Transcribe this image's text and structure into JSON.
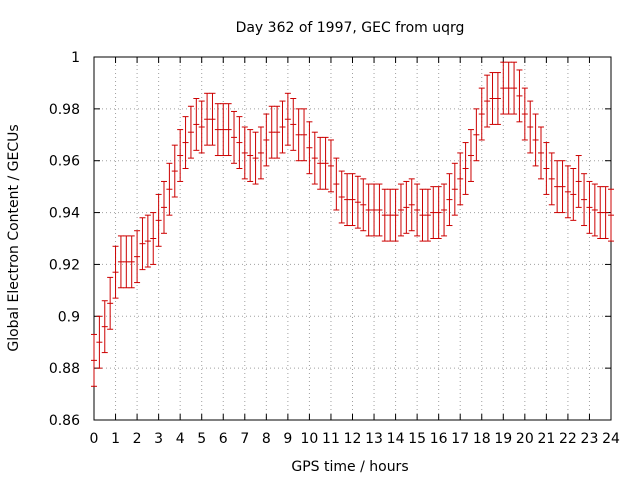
{
  "chart_data": {
    "type": "line",
    "title": "Day 362 of 1997, GEC from uqrg",
    "xlabel": "GPS time / hours",
    "ylabel": "Global Electron Content / GECUs",
    "xlim": [
      0,
      24
    ],
    "ylim": [
      0.86,
      1.0
    ],
    "x_ticks": [
      "0",
      "1",
      "2",
      "3",
      "4",
      "5",
      "6",
      "7",
      "8",
      "9",
      "10",
      "11",
      "12",
      "13",
      "14",
      "15",
      "16",
      "17",
      "18",
      "19",
      "20",
      "21",
      "22",
      "23",
      "24"
    ],
    "y_ticks": [
      "0.86",
      "0.88",
      "0.9",
      "0.92",
      "0.94",
      "0.96",
      "0.98",
      "1"
    ],
    "grid": true,
    "series_color": "#cc0000",
    "series": [
      {
        "error_bar": 0.01,
        "points": [
          [
            0.0,
            0.883
          ],
          [
            0.25,
            0.89
          ],
          [
            0.5,
            0.896
          ],
          [
            0.75,
            0.905
          ],
          [
            1.0,
            0.917
          ],
          [
            1.25,
            0.921
          ],
          [
            1.5,
            0.921
          ],
          [
            1.75,
            0.921
          ],
          [
            2.0,
            0.923
          ],
          [
            2.25,
            0.928
          ],
          [
            2.5,
            0.929
          ],
          [
            2.75,
            0.93
          ],
          [
            3.0,
            0.937
          ],
          [
            3.25,
            0.942
          ],
          [
            3.5,
            0.949
          ],
          [
            3.75,
            0.956
          ],
          [
            4.0,
            0.962
          ],
          [
            4.25,
            0.967
          ],
          [
            4.5,
            0.971
          ],
          [
            4.75,
            0.974
          ],
          [
            5.0,
            0.973
          ],
          [
            5.25,
            0.976
          ],
          [
            5.5,
            0.976
          ],
          [
            5.75,
            0.972
          ],
          [
            6.0,
            0.972
          ],
          [
            6.25,
            0.972
          ],
          [
            6.5,
            0.969
          ],
          [
            6.75,
            0.967
          ],
          [
            7.0,
            0.963
          ],
          [
            7.25,
            0.962
          ],
          [
            7.5,
            0.961
          ],
          [
            7.75,
            0.963
          ],
          [
            8.0,
            0.968
          ],
          [
            8.25,
            0.971
          ],
          [
            8.5,
            0.971
          ],
          [
            8.75,
            0.973
          ],
          [
            9.0,
            0.976
          ],
          [
            9.25,
            0.974
          ],
          [
            9.5,
            0.97
          ],
          [
            9.75,
            0.97
          ],
          [
            10.0,
            0.965
          ],
          [
            10.25,
            0.961
          ],
          [
            10.5,
            0.959
          ],
          [
            10.75,
            0.959
          ],
          [
            11.0,
            0.958
          ],
          [
            11.25,
            0.951
          ],
          [
            11.5,
            0.946
          ],
          [
            11.75,
            0.945
          ],
          [
            12.0,
            0.945
          ],
          [
            12.25,
            0.944
          ],
          [
            12.5,
            0.943
          ],
          [
            12.75,
            0.941
          ],
          [
            13.0,
            0.941
          ],
          [
            13.25,
            0.941
          ],
          [
            13.5,
            0.939
          ],
          [
            13.75,
            0.939
          ],
          [
            14.0,
            0.939
          ],
          [
            14.25,
            0.941
          ],
          [
            14.5,
            0.942
          ],
          [
            14.75,
            0.943
          ],
          [
            15.0,
            0.941
          ],
          [
            15.25,
            0.939
          ],
          [
            15.5,
            0.939
          ],
          [
            15.75,
            0.94
          ],
          [
            16.0,
            0.94
          ],
          [
            16.25,
            0.941
          ],
          [
            16.5,
            0.945
          ],
          [
            16.75,
            0.949
          ],
          [
            17.0,
            0.953
          ],
          [
            17.25,
            0.957
          ],
          [
            17.5,
            0.962
          ],
          [
            17.75,
            0.97
          ],
          [
            18.0,
            0.978
          ],
          [
            18.25,
            0.983
          ],
          [
            18.5,
            0.984
          ],
          [
            18.75,
            0.984
          ],
          [
            19.0,
            0.988
          ],
          [
            19.25,
            0.988
          ],
          [
            19.5,
            0.988
          ],
          [
            19.75,
            0.985
          ],
          [
            20.0,
            0.978
          ],
          [
            20.25,
            0.973
          ],
          [
            20.5,
            0.968
          ],
          [
            20.75,
            0.963
          ],
          [
            21.0,
            0.957
          ],
          [
            21.25,
            0.953
          ],
          [
            21.5,
            0.95
          ],
          [
            21.75,
            0.95
          ],
          [
            22.0,
            0.948
          ],
          [
            22.25,
            0.947
          ],
          [
            22.5,
            0.952
          ],
          [
            22.75,
            0.945
          ],
          [
            23.0,
            0.942
          ],
          [
            23.25,
            0.941
          ],
          [
            23.5,
            0.94
          ],
          [
            23.75,
            0.94
          ],
          [
            24.0,
            0.939
          ]
        ]
      }
    ]
  }
}
